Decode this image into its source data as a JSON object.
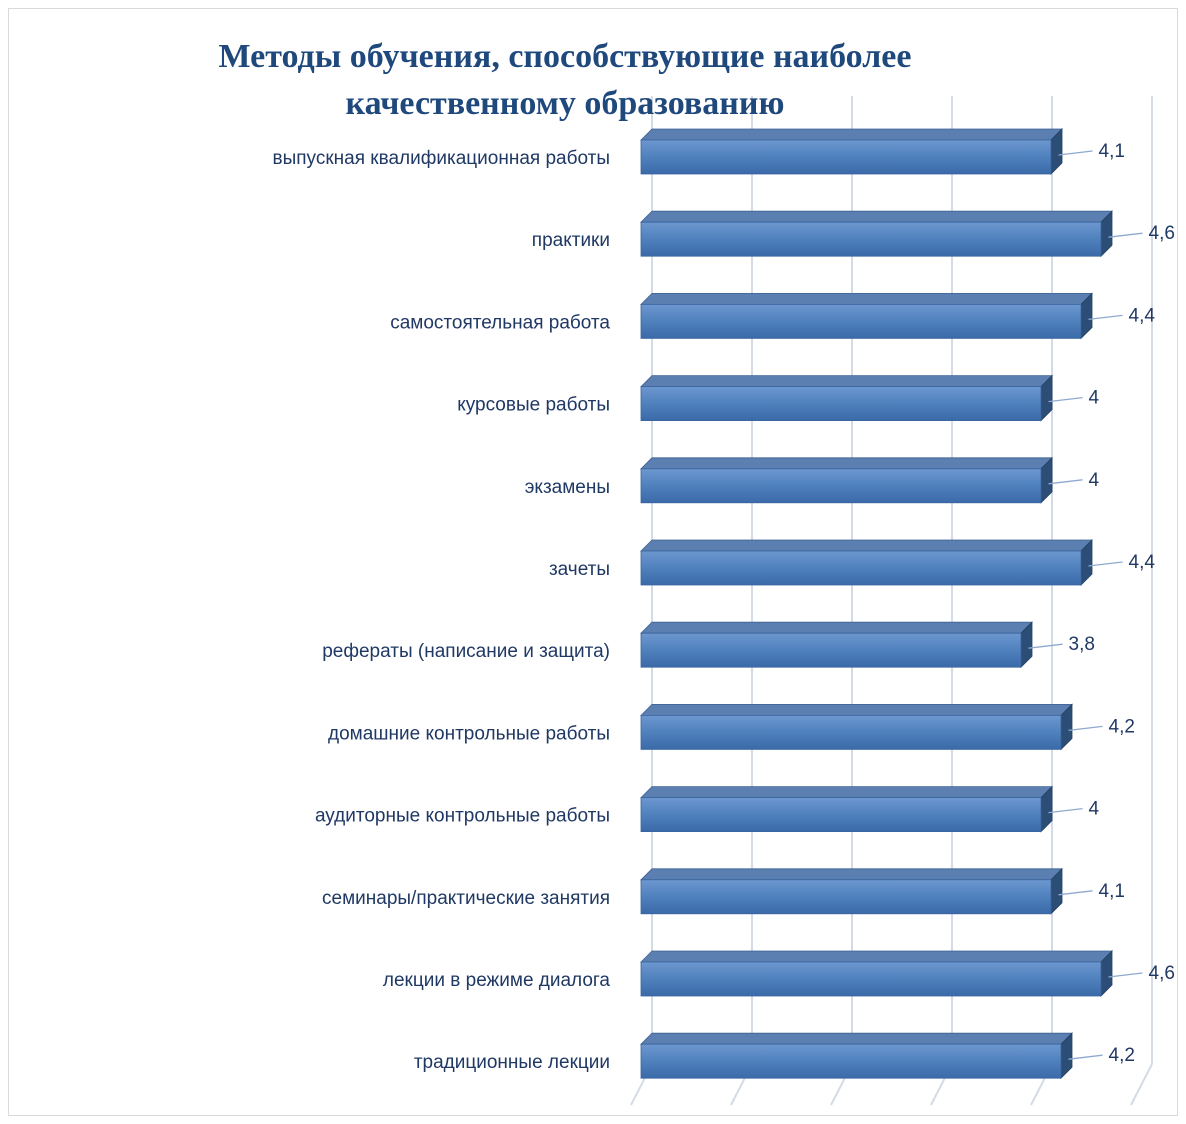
{
  "chart_data": {
    "type": "bar",
    "orientation": "horizontal",
    "title_lines": [
      "Методы обучения, способствующие наиболее",
      "качественному образованию"
    ],
    "categories": [
      "выпускная квалификационная работы",
      "практики",
      "самостоятельная работа",
      "курсовые работы",
      "экзамены",
      "зачеты",
      "рефераты (написание и защита)",
      "домашние контрольные работы",
      "аудиторные контрольные работы",
      "семинары/практические занятия",
      "лекции в режиме диалога",
      "традиционные лекции"
    ],
    "values": [
      4.1,
      4.6,
      4.4,
      4,
      4,
      4.4,
      3.8,
      4.2,
      4,
      4.1,
      4.6,
      4.2
    ],
    "value_labels": [
      "4,1",
      "4,6",
      "4,4",
      "4",
      "4",
      "4,4",
      "3,8",
      "4,2",
      "4",
      "4,1",
      "4,6",
      "4,2"
    ],
    "xlim": [
      0,
      5
    ],
    "grid": true,
    "legend": "none",
    "bar_color": "#4f81bd",
    "bar_dark_color": "#2c4d75",
    "text_color": "#1f3864",
    "title_color": "#1f497d"
  }
}
